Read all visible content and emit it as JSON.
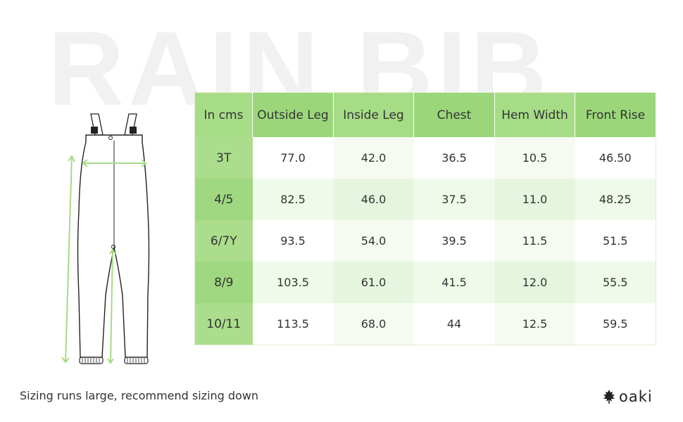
{
  "watermark": {
    "text": "RAIN BIB"
  },
  "table": {
    "headers": [
      "In cms",
      "Outside Leg",
      "Inside Leg",
      "Chest",
      "Hem Width",
      "Front Rise"
    ],
    "rows": [
      [
        "3T",
        "77.0",
        "42.0",
        "36.5",
        "10.5",
        "46.50"
      ],
      [
        "4/5",
        "82.5",
        "46.0",
        "37.5",
        "11.0",
        "48.25"
      ],
      [
        "6/7Y",
        "93.5",
        "54.0",
        "39.5",
        "11.5",
        "51.5"
      ],
      [
        "8/9",
        "103.5",
        "61.0",
        "41.5",
        "12.0",
        "55.5"
      ],
      [
        "10/11",
        "113.5",
        "68.0",
        "44",
        "12.5",
        "59.5"
      ]
    ]
  },
  "footnote": "Sizing runs large, recommend sizing down",
  "brand": {
    "name": "oaki",
    "icon": "leaf-icon"
  },
  "colors": {
    "header_green": "#a6dc86",
    "measure_line_green": "#a6dc86",
    "row_tint": "#effaea"
  }
}
